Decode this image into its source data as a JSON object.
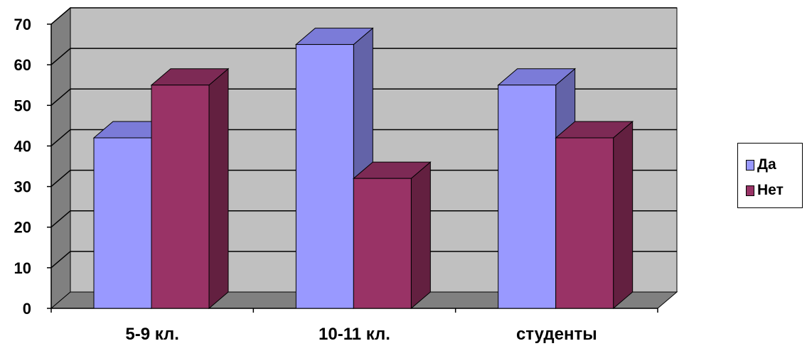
{
  "chart_data": {
    "type": "bar",
    "categories": [
      "5-9 кл.",
      "10-11 кл.",
      "студенты"
    ],
    "series": [
      {
        "name": "Да",
        "values": [
          42,
          65,
          55
        ],
        "color": "#9999ff",
        "top_color": "#7b7bd8",
        "side_color": "#6363a8"
      },
      {
        "name": "Нет",
        "values": [
          55,
          32,
          42
        ],
        "color": "#993366",
        "top_color": "#7d2a55",
        "side_color": "#632040"
      }
    ],
    "ylim": [
      0,
      70
    ],
    "yticks": [
      "0",
      "10",
      "20",
      "30",
      "40",
      "50",
      "60",
      "70"
    ],
    "grid": true,
    "legend": "right"
  }
}
